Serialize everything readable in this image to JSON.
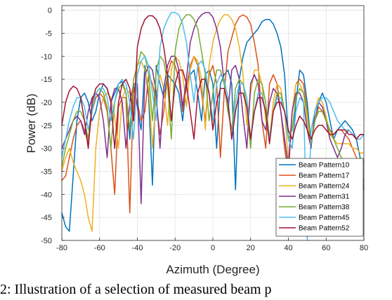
{
  "chart_data": {
    "type": "line",
    "title": "",
    "xlabel": "Azimuth (Degree)",
    "ylabel": "Power (dB)",
    "xlim": [
      -80,
      80
    ],
    "ylim": [
      -50,
      1
    ],
    "xticks": [
      -80,
      -60,
      -40,
      -20,
      0,
      20,
      40,
      60,
      80
    ],
    "yticks": [
      0,
      -5,
      -10,
      -15,
      -20,
      -25,
      -30,
      -35,
      -40,
      -45,
      -50
    ],
    "grid": true,
    "legend_position": "bottom-right",
    "series": [
      {
        "name": "Beam Pattern10",
        "color": "#0072BD",
        "x": [
          -80,
          -78,
          -76,
          -74,
          -72,
          -70,
          -68,
          -66,
          -64,
          -62,
          -60,
          -58,
          -56,
          -54,
          -52,
          -50,
          -48,
          -46,
          -44,
          -42,
          -40,
          -38,
          -36,
          -34,
          -32,
          -30,
          -28,
          -26,
          -24,
          -22,
          -20,
          -18,
          -16,
          -14,
          -12,
          -10,
          -8,
          -6,
          -4,
          -2,
          0,
          2,
          4,
          6,
          8,
          10,
          12,
          14,
          16,
          18,
          20,
          22,
          24,
          26,
          28,
          30,
          32,
          34,
          36,
          38,
          40,
          42,
          44,
          46,
          48,
          50,
          52,
          54,
          56,
          58,
          60,
          62,
          64,
          66,
          68,
          70,
          72,
          74,
          76,
          78,
          80
        ],
        "y": [
          -44,
          -47,
          -48,
          -36,
          -24,
          -19,
          -18,
          -20,
          -24,
          -22,
          -18,
          -16,
          -17,
          -20,
          -18,
          -16,
          -15.5,
          -18,
          -28,
          -16,
          -21,
          -26,
          -12,
          -19,
          -38,
          -12,
          -16,
          -19,
          -14,
          -15,
          -16,
          -18,
          -24,
          -16,
          -14,
          -13,
          -18,
          -24,
          -14,
          -13,
          -16,
          -30,
          -16,
          -14,
          -13,
          -16,
          -39,
          -15,
          -10,
          -7,
          -6,
          -5,
          -4,
          -2.5,
          -2,
          -2,
          -3,
          -5,
          -8,
          -14,
          -28,
          -30,
          -20,
          -13,
          -14,
          -20,
          -29,
          -24,
          -20,
          -18,
          -20,
          -24,
          -28,
          -26,
          -25,
          -24,
          -25,
          -26,
          -28,
          -32,
          -39
        ]
      },
      {
        "name": "Beam Pattern17",
        "color": "#D95319",
        "x": [
          -80,
          -78,
          -76,
          -74,
          -72,
          -70,
          -68,
          -66,
          -64,
          -62,
          -60,
          -58,
          -56,
          -54,
          -52,
          -50,
          -48,
          -46,
          -44,
          -42,
          -40,
          -38,
          -36,
          -34,
          -32,
          -30,
          -28,
          -26,
          -24,
          -22,
          -20,
          -18,
          -16,
          -14,
          -12,
          -10,
          -8,
          -6,
          -4,
          -2,
          0,
          2,
          4,
          6,
          8,
          10,
          12,
          14,
          16,
          18,
          20,
          22,
          24,
          26,
          28,
          30,
          32,
          34,
          36,
          38,
          40,
          42,
          44,
          46,
          48,
          50,
          52,
          54,
          56,
          58,
          60,
          62,
          64,
          66,
          68,
          70,
          72,
          74,
          76,
          78,
          80
        ],
        "y": [
          -37,
          -36,
          -32,
          -28,
          -25,
          -24,
          -26,
          -29,
          -22,
          -19,
          -18,
          -19,
          -22,
          -30,
          -40,
          -21,
          -19,
          -19,
          -44,
          -17,
          -20,
          -24,
          -22,
          -14,
          -16,
          -20,
          -27,
          -22,
          -14,
          -11,
          -12,
          -15,
          -22,
          -17,
          -12,
          -10,
          -12,
          -18,
          -24,
          -14,
          -12,
          -16,
          -32,
          -18,
          -9,
          -6,
          -3,
          -1.5,
          -1,
          -1.5,
          -3,
          -7,
          -12,
          -24,
          -30,
          -16,
          -14,
          -16,
          -22,
          -30,
          -36,
          -22,
          -16,
          -15,
          -16,
          -22,
          -29,
          -24,
          -21,
          -22,
          -24,
          -26,
          -27,
          -26,
          -26,
          -27,
          -28,
          -30,
          -32,
          -35,
          -37
        ]
      },
      {
        "name": "Beam Pattern24",
        "color": "#EDB120",
        "x": [
          -80,
          -78,
          -76,
          -74,
          -72,
          -70,
          -68,
          -66,
          -64,
          -62,
          -60,
          -58,
          -56,
          -54,
          -52,
          -50,
          -48,
          -46,
          -44,
          -42,
          -40,
          -38,
          -36,
          -34,
          -32,
          -30,
          -28,
          -26,
          -24,
          -22,
          -20,
          -18,
          -16,
          -14,
          -12,
          -10,
          -8,
          -6,
          -4,
          -2,
          0,
          2,
          4,
          6,
          8,
          10,
          12,
          14,
          16,
          18,
          20,
          22,
          24,
          26,
          28,
          30,
          32,
          34,
          36,
          38,
          40,
          42,
          44,
          46,
          48,
          50,
          52,
          54,
          56,
          58,
          60,
          62,
          64,
          66,
          68,
          70,
          72,
          74,
          76,
          78,
          80
        ],
        "y": [
          -35,
          -32,
          -30,
          -33,
          -35,
          -37,
          -40,
          -45,
          -48,
          -30,
          -22,
          -19,
          -18,
          -19,
          -23,
          -30,
          -19,
          -17,
          -18,
          -23,
          -12,
          -11,
          -13,
          -17,
          -30,
          -18,
          -14,
          -17,
          -25,
          -13,
          -10,
          -11,
          -14,
          -21,
          -13,
          -10,
          -11,
          -15,
          -26,
          -12,
          -7,
          -4,
          -2,
          -1,
          -1,
          -2,
          -4,
          -8,
          -14,
          -25,
          -18,
          -13,
          -13,
          -16,
          -24,
          -28,
          -20,
          -16,
          -17,
          -22,
          -33,
          -22,
          -16,
          -16,
          -18,
          -24,
          -30,
          -22,
          -19,
          -20,
          -23,
          -27,
          -28,
          -29,
          -29,
          -29,
          -29,
          -30,
          -30,
          -31,
          -31
        ]
      },
      {
        "name": "Beam Pattern31",
        "color": "#7E2F8E",
        "x": [
          -80,
          -78,
          -76,
          -74,
          -72,
          -70,
          -68,
          -66,
          -64,
          -62,
          -60,
          -58,
          -56,
          -54,
          -52,
          -50,
          -48,
          -46,
          -44,
          -42,
          -40,
          -38,
          -36,
          -34,
          -32,
          -30,
          -28,
          -26,
          -24,
          -22,
          -20,
          -18,
          -16,
          -14,
          -12,
          -10,
          -8,
          -6,
          -4,
          -2,
          0,
          2,
          4,
          6,
          8,
          10,
          12,
          14,
          16,
          18,
          20,
          22,
          24,
          26,
          28,
          30,
          32,
          34,
          36,
          38,
          40,
          42,
          44,
          46,
          48,
          50,
          52,
          54,
          56,
          58,
          60,
          62,
          64,
          66,
          68,
          70,
          72,
          74,
          76,
          78,
          80
        ],
        "y": [
          -30,
          -28,
          -26,
          -24,
          -23,
          -24,
          -27,
          -22,
          -19,
          -18,
          -19,
          -24,
          -32,
          -20,
          -17,
          -17,
          -20,
          -30,
          -20,
          -16,
          -16,
          -42,
          -14,
          -12,
          -13,
          -18,
          -30,
          -17,
          -12,
          -10,
          -10,
          -13,
          -21,
          -15,
          -7,
          -4,
          -2,
          -1,
          -0.5,
          -0.5,
          -1.5,
          -4,
          -8,
          -16,
          -22,
          -13,
          -12,
          -15,
          -23,
          -30,
          -16,
          -14,
          -16,
          -24,
          -26,
          -20,
          -17,
          -18,
          -22,
          -28,
          -34,
          -22,
          -18,
          -18,
          -20,
          -26,
          -30,
          -22,
          -20,
          -21,
          -24,
          -28,
          -30,
          -32,
          -30,
          -27,
          -26,
          -27,
          -28,
          -27,
          -27
        ]
      },
      {
        "name": "Beam Pattern38",
        "color": "#77AC30",
        "x": [
          -80,
          -78,
          -76,
          -74,
          -72,
          -70,
          -68,
          -66,
          -64,
          -62,
          -60,
          -58,
          -56,
          -54,
          -52,
          -50,
          -48,
          -46,
          -44,
          -42,
          -40,
          -38,
          -36,
          -34,
          -32,
          -30,
          -28,
          -26,
          -24,
          -22,
          -20,
          -18,
          -16,
          -14,
          -12,
          -10,
          -8,
          -6,
          -4,
          -2,
          0,
          2,
          4,
          6,
          8,
          10,
          12,
          14,
          16,
          18,
          20,
          22,
          24,
          26,
          28,
          30,
          32,
          34,
          36,
          38,
          40,
          42,
          44,
          46,
          48,
          50,
          52,
          54,
          56,
          58,
          60,
          62,
          64,
          66,
          68,
          70,
          72,
          74,
          76,
          78,
          80
        ],
        "y": [
          -34,
          -30,
          -27,
          -24,
          -22,
          -22,
          -24,
          -28,
          -21,
          -18,
          -17,
          -18,
          -21,
          -30,
          -20,
          -17,
          -16,
          -18,
          -26,
          -15,
          -12,
          -9,
          -10,
          -14,
          -24,
          -13,
          -10,
          -11,
          -16,
          -28,
          -9,
          -4,
          -2,
          -1,
          -1,
          -2,
          -4,
          -9,
          -14,
          -24,
          -18,
          -13,
          -13,
          -16,
          -22,
          -26,
          -17,
          -15,
          -16,
          -21,
          -30,
          -18,
          -15,
          -16,
          -20,
          -28,
          -22,
          -18,
          -18,
          -22,
          -28,
          -26,
          -19,
          -17,
          -18,
          -22,
          -29,
          -24,
          -22,
          -22,
          -24,
          -26,
          -28,
          -30,
          -32,
          -33,
          -33,
          -34,
          -33,
          -32,
          -33
        ]
      },
      {
        "name": "Beam Pattern45",
        "color": "#4DBEEE",
        "x": [
          -80,
          -78,
          -76,
          -74,
          -72,
          -70,
          -68,
          -66,
          -64,
          -62,
          -60,
          -58,
          -56,
          -54,
          -52,
          -50,
          -48,
          -46,
          -44,
          -42,
          -40,
          -38,
          -36,
          -34,
          -32,
          -30,
          -28,
          -26,
          -24,
          -22,
          -20,
          -18,
          -16,
          -14,
          -12,
          -10,
          -8,
          -6,
          -4,
          -2,
          0,
          2,
          4,
          6,
          8,
          10,
          12,
          14,
          16,
          18,
          20,
          22,
          24,
          26,
          28,
          30,
          32,
          34,
          36,
          38,
          40,
          42,
          44,
          46,
          48,
          50,
          52,
          54,
          56,
          58,
          60,
          62,
          64,
          66,
          68,
          70,
          72,
          74,
          76,
          78,
          80
        ],
        "y": [
          -32,
          -28,
          -24,
          -21,
          -19,
          -19,
          -21,
          -26,
          -22,
          -18,
          -17,
          -17,
          -19,
          -24,
          -20,
          -16,
          -15,
          -16,
          -20,
          -28,
          -14,
          -11,
          -10,
          -12,
          -18,
          -24,
          -8,
          -4,
          -2,
          -0.5,
          -0.5,
          -1,
          -3,
          -7,
          -14,
          -20,
          -12,
          -11,
          -13,
          -18,
          -24,
          -16,
          -14,
          -15,
          -19,
          -28,
          -20,
          -16,
          -16,
          -19,
          -28,
          -22,
          -18,
          -18,
          -22,
          -28,
          -22,
          -19,
          -19,
          -22,
          -28,
          -30,
          -22,
          -19,
          -20,
          -50,
          -26,
          -22,
          -20,
          -19,
          -19,
          -20,
          -22,
          -24,
          -25,
          -26,
          -26,
          -27,
          -28,
          -28,
          -27
        ]
      },
      {
        "name": "Beam Pattern52",
        "color": "#A2142F",
        "x": [
          -80,
          -78,
          -76,
          -74,
          -72,
          -70,
          -68,
          -66,
          -64,
          -62,
          -60,
          -58,
          -56,
          -54,
          -52,
          -50,
          -48,
          -46,
          -44,
          -42,
          -40,
          -38,
          -36,
          -34,
          -32,
          -30,
          -28,
          -26,
          -24,
          -22,
          -20,
          -18,
          -16,
          -14,
          -12,
          -10,
          -8,
          -6,
          -4,
          -2,
          0,
          2,
          4,
          6,
          8,
          10,
          12,
          14,
          16,
          18,
          20,
          22,
          24,
          26,
          28,
          30,
          32,
          34,
          36,
          38,
          40,
          42,
          44,
          46,
          48,
          50,
          52,
          54,
          56,
          58,
          60,
          62,
          64,
          66,
          68,
          70,
          72,
          74,
          76,
          78,
          80
        ],
        "y": [
          -25,
          -20,
          -17.5,
          -16.5,
          -17,
          -19,
          -24,
          -30,
          -20,
          -17,
          -16,
          -16,
          -17,
          -20,
          -30,
          -20,
          -16,
          -15,
          -17,
          -24,
          -8,
          -4,
          -2,
          -1.2,
          -1.2,
          -2,
          -4,
          -8,
          -14,
          -24,
          -16,
          -13,
          -13,
          -16,
          -22,
          -28,
          -18,
          -15,
          -15,
          -18,
          -26,
          -20,
          -17,
          -17,
          -20,
          -28,
          -22,
          -18,
          -18,
          -21,
          -28,
          -22,
          -19,
          -19,
          -22,
          -29,
          -22,
          -20,
          -20,
          -22,
          -26,
          -28,
          -25,
          -23,
          -24,
          -26,
          -28,
          -26,
          -25,
          -25,
          -26,
          -27,
          -27,
          -26,
          -26,
          -26,
          -27,
          -27,
          -28,
          -27,
          -27
        ]
      }
    ]
  },
  "caption": {
    "text": "2: Illustration of a selection of measured beam p"
  }
}
